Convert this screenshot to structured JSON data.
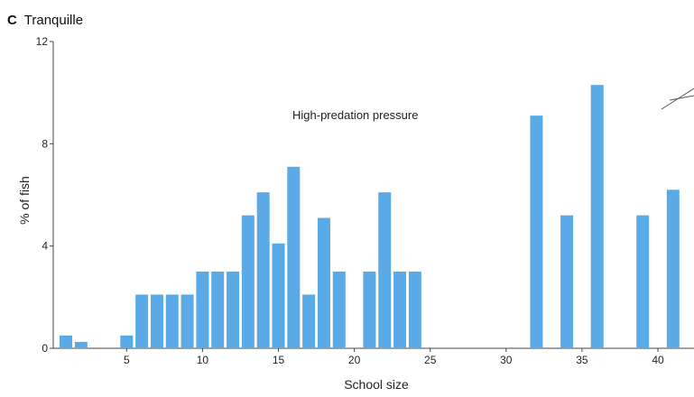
{
  "chart_data": {
    "type": "bar",
    "panel_letter": "C",
    "title": "Tranquille",
    "xlabel": "School size",
    "ylabel": "% of fish",
    "annotation": "High-predation pressure",
    "xlim": [
      0,
      41.5
    ],
    "ylim": [
      0,
      12
    ],
    "x_ticks": [
      5,
      10,
      15,
      20,
      25,
      30,
      35,
      40
    ],
    "y_ticks": [
      0,
      4,
      8,
      12
    ],
    "bar_color": "#5aaae8",
    "x": [
      1,
      2,
      5,
      6,
      7,
      8,
      9,
      10,
      11,
      12,
      13,
      14,
      15,
      16,
      17,
      18,
      19,
      21,
      22,
      23,
      24,
      32,
      34,
      36,
      39,
      41
    ],
    "values": [
      0.5,
      0.25,
      0.5,
      2.1,
      2.1,
      2.1,
      2.1,
      3.0,
      3.0,
      3.0,
      5.2,
      6.1,
      4.1,
      7.1,
      2.1,
      5.1,
      3.0,
      3.0,
      6.1,
      3.0,
      3.0,
      9.1,
      5.2,
      10.3,
      5.2,
      6.2
    ]
  }
}
